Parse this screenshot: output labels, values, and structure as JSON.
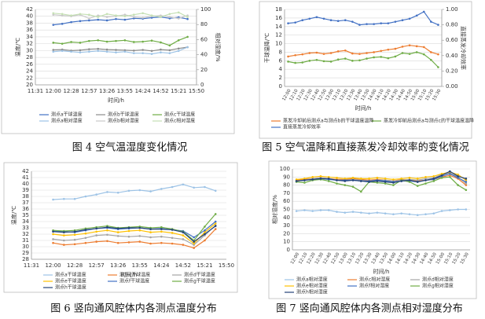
{
  "chart_data": [
    {
      "type": "line",
      "caption": "图 4 空气温湿度变化情况",
      "x_label": "时间/h",
      "y_label": "温度/℃",
      "y2_label": "相对湿度/%",
      "categories": [
        "11:31",
        null,
        "12:00",
        null,
        "12:28",
        null,
        "12:57",
        null,
        "13:26",
        null,
        "13:55",
        null,
        "14:24",
        null,
        "14:52",
        null,
        "15:21",
        null,
        "15:50"
      ],
      "ylim": [
        20,
        42
      ],
      "yticks": [
        20,
        22,
        24,
        26,
        28,
        30,
        32,
        34,
        36,
        38,
        40,
        42
      ],
      "y2lim": [
        0,
        100
      ],
      "y2ticks": [
        0,
        20,
        40,
        60,
        80,
        100
      ],
      "series": [
        {
          "name": "测点a干球温度",
          "color": "#4472c4",
          "values": [
            null,
            null,
            37.5,
            37.8,
            38.3,
            38.6,
            38.8,
            39.0,
            38.8,
            39.2,
            39.0,
            39.4,
            39.3,
            39.6,
            39.8,
            39.4,
            39.7,
            39.2,
            null
          ]
        },
        {
          "name": "测点b干球温度",
          "color": "#8c8c8c",
          "values": [
            null,
            null,
            30.2,
            30.3,
            30.0,
            30.1,
            30.4,
            30.5,
            30.3,
            30.2,
            30.1,
            30.0,
            30.2,
            29.9,
            30.3,
            30.1,
            30.6,
            31.0,
            null
          ]
        },
        {
          "name": "测点c干球温度",
          "color": "#70ad47",
          "values": [
            null,
            null,
            32.3,
            32.0,
            32.5,
            32.3,
            32.8,
            33.0,
            32.6,
            32.8,
            33.0,
            32.5,
            32.6,
            32.9,
            32.4,
            31.5,
            33.0,
            34.0,
            null
          ]
        },
        {
          "name": "测点a相对湿度",
          "color": "#9dc3e6",
          "axis": "y2",
          "values": [
            null,
            null,
            44,
            45,
            44,
            43,
            44,
            45,
            44,
            43,
            44,
            42,
            42,
            41,
            43,
            42,
            45,
            50,
            null
          ]
        },
        {
          "name": "测点b相对湿度",
          "color": "#c9c9c9",
          "axis": "y2",
          "values": [
            null,
            null,
            93,
            92,
            91,
            93,
            88,
            92,
            90,
            91,
            93,
            90,
            89,
            91,
            92,
            90,
            88,
            92,
            null
          ]
        },
        {
          "name": "测点c相对湿度",
          "color": "#c5e0b4",
          "axis": "y2",
          "values": [
            null,
            null,
            95,
            94,
            92,
            94,
            93,
            90,
            94,
            92,
            91,
            93,
            95,
            92,
            90,
            94,
            96,
            90,
            null
          ]
        }
      ]
    },
    {
      "type": "line",
      "caption": "图 5 空气温降和直接蒸发冷却效率的变化情况",
      "x_label": "时间/h",
      "y_label": "干球温降/℃",
      "y2_label": "直接蒸发冷却效率",
      "categories": [
        "12:00",
        "12:10",
        "12:20",
        "12:30",
        "12:40",
        "12:50",
        "13:00",
        "13:10",
        "13:20",
        "13:30",
        "13:40",
        "13:50",
        "14:00",
        "14:10",
        "14:20",
        "14:30",
        "14:40",
        "14:50",
        "15:00",
        "15:10",
        "15:20",
        "15:30"
      ],
      "ylim": [
        0,
        18
      ],
      "yticks": [
        0,
        2,
        4,
        6,
        8,
        10,
        12,
        14,
        16,
        18
      ],
      "y2lim": [
        0,
        1
      ],
      "y2ticks": [
        {
          "value": 0,
          "label": "0.00"
        },
        {
          "value": 0.2,
          "label": "0.20"
        },
        {
          "value": 0.4,
          "label": "0.40"
        },
        {
          "value": 0.6,
          "label": "0.60"
        },
        {
          "value": 0.8,
          "label": "0.80"
        },
        {
          "value": 1,
          "label": "1.00"
        }
      ],
      "series": [
        {
          "name": "蒸发冷却前后测点a与测点b的干球温度温降",
          "color": "#ed7d31",
          "values": [
            7.0,
            7.3,
            7.5,
            7.8,
            7.9,
            7.6,
            7.8,
            8.2,
            8.4,
            7.7,
            7.6,
            7.8,
            8.0,
            8.3,
            8.6,
            8.8,
            9.3,
            9.6,
            9.4,
            9.2,
            8.0,
            7.5
          ]
        },
        {
          "name": "蒸发冷却前后测点a与测点c的干球温度温降",
          "color": "#70ad47",
          "values": [
            5.8,
            5.5,
            5.6,
            6.0,
            6.2,
            5.9,
            5.8,
            6.3,
            6.5,
            6.0,
            6.1,
            6.5,
            6.8,
            6.9,
            6.6,
            7.0,
            7.8,
            7.6,
            8.0,
            7.5,
            6.2,
            4.5
          ]
        },
        {
          "name": "直接蒸发冷却效率",
          "color": "#4472c4",
          "axis": "y2",
          "values": [
            0.82,
            0.83,
            0.86,
            0.88,
            0.9,
            0.88,
            0.86,
            0.85,
            0.86,
            0.84,
            0.8,
            0.81,
            0.81,
            0.82,
            0.82,
            0.84,
            0.86,
            0.88,
            0.92,
            0.97,
            0.84,
            0.8
          ]
        }
      ]
    },
    {
      "type": "line",
      "caption": "图 6 竖向通风腔体内各测点温度分布",
      "x_label": "时间/h",
      "y_label": "温度/℃",
      "categories": [
        "11:31",
        null,
        "12:00",
        null,
        "12:28",
        null,
        "12:57",
        null,
        "13:26",
        null,
        "13:55",
        null,
        "14:24",
        null,
        "14:52",
        null,
        "15:21",
        null,
        "15:50"
      ],
      "ylim": [
        28,
        42
      ],
      "yticks": [
        28,
        29,
        30,
        31,
        32,
        33,
        34,
        35,
        36,
        37,
        38,
        39,
        40,
        41,
        42
      ],
      "series": [
        {
          "name": "测点a干球温度",
          "color": "#9dc3e6",
          "values": [
            null,
            null,
            37.5,
            37.6,
            37.6,
            38.0,
            38.3,
            38.7,
            38.6,
            38.9,
            39.0,
            38.8,
            39.2,
            39.5,
            39.9,
            39.4,
            39.5,
            38.9,
            null
          ]
        },
        {
          "name": "测点c干球温度",
          "color": "#ed7d31",
          "values": [
            null,
            null,
            30.6,
            30.3,
            30.4,
            30.6,
            30.8,
            30.9,
            30.6,
            30.7,
            30.8,
            30.5,
            30.6,
            30.5,
            30.3,
            29.8,
            31.0,
            32.8,
            null
          ]
        },
        {
          "name": "测点d干球温度",
          "color": "#a5a5a5",
          "values": [
            null,
            null,
            31.2,
            31.0,
            31.1,
            31.4,
            31.8,
            31.9,
            31.7,
            31.6,
            31.7,
            31.5,
            31.6,
            31.4,
            31.2,
            30.3,
            31.8,
            33.4,
            null
          ]
        },
        {
          "name": "测点e干球温度",
          "color": "#ffc000",
          "values": [
            null,
            null,
            32.0,
            31.8,
            31.9,
            32.1,
            32.4,
            32.6,
            32.3,
            32.5,
            32.6,
            32.3,
            32.4,
            32.2,
            31.8,
            30.5,
            32.3,
            33.7,
            null
          ]
        },
        {
          "name": "测点f干球温度",
          "color": "#4472c4",
          "values": [
            null,
            null,
            32.5,
            32.4,
            32.3,
            32.6,
            32.9,
            33.0,
            32.8,
            32.9,
            33.0,
            32.8,
            32.9,
            32.7,
            32.5,
            31.5,
            32.6,
            34.0,
            null
          ]
        },
        {
          "name": "测点g干球温度",
          "color": "#70ad47",
          "values": [
            null,
            null,
            32.6,
            32.5,
            32.6,
            32.9,
            33.1,
            33.3,
            33.0,
            33.1,
            33.2,
            33.0,
            33.1,
            32.8,
            32.4,
            31.0,
            33.2,
            35.2,
            null
          ]
        },
        {
          "name": "测点h干球温度",
          "color": "#264478",
          "values": [
            null,
            null,
            32.4,
            32.3,
            32.4,
            32.7,
            32.9,
            33.1,
            32.9,
            33.0,
            33.0,
            32.8,
            32.8,
            32.7,
            32.3,
            30.8,
            32.0,
            33.3,
            null
          ]
        }
      ]
    },
    {
      "type": "line",
      "caption": "图 7 竖向通风腔体内各测点相对湿度分布",
      "x_label": "时间/h",
      "y_label": "相对湿度/%",
      "categories": [
        "12:00",
        "12:10",
        "12:20",
        "12:30",
        "12:40",
        "12:50",
        "13:00",
        "13:10",
        "13:20",
        "13:30",
        "13:40",
        "13:50",
        "14:00",
        "14:10",
        "14:20",
        "14:30",
        "14:40",
        "14:50",
        "15:00",
        "15:10",
        "15:20",
        "15:30"
      ],
      "ylim": [
        0,
        100
      ],
      "yticks": [
        0,
        10,
        20,
        30,
        40,
        50,
        60,
        70,
        80,
        90,
        100
      ],
      "series": [
        {
          "name": "测点a相对湿度",
          "color": "#9dc3e6",
          "values": [
            48,
            49,
            48,
            49,
            49,
            47,
            46,
            47,
            46,
            45,
            46,
            45,
            44,
            45,
            44,
            43,
            44,
            45,
            48,
            49,
            50,
            50
          ]
        },
        {
          "name": "测点c相对湿度",
          "color": "#ed7d31",
          "values": [
            86,
            87,
            88,
            89,
            88,
            87,
            87,
            88,
            87,
            86,
            87,
            86,
            85,
            87,
            86,
            85,
            86,
            87,
            90,
            92,
            88,
            80
          ]
        },
        {
          "name": "测点d相对湿度",
          "color": "#a5a5a5",
          "values": [
            85,
            86,
            88,
            89,
            88,
            86,
            86,
            87,
            86,
            85,
            86,
            86,
            85,
            86,
            87,
            86,
            88,
            89,
            93,
            95,
            90,
            82
          ]
        },
        {
          "name": "测点e相对湿度",
          "color": "#ffc000",
          "values": [
            87,
            88,
            90,
            91,
            90,
            89,
            88,
            89,
            88,
            88,
            89,
            88,
            87,
            88,
            89,
            88,
            90,
            91,
            94,
            96,
            93,
            86
          ]
        },
        {
          "name": "测点f相对湿度",
          "color": "#4472c4",
          "values": [
            85,
            86,
            87,
            88,
            87,
            86,
            86,
            86,
            85,
            85,
            86,
            85,
            84,
            85,
            85,
            84,
            86,
            87,
            91,
            94,
            89,
            84
          ]
        },
        {
          "name": "测点g相对湿度",
          "color": "#70ad47",
          "values": [
            84,
            83,
            86,
            87,
            85,
            82,
            80,
            78,
            72,
            84,
            83,
            82,
            80,
            86,
            84,
            79,
            82,
            85,
            89,
            90,
            80,
            74
          ]
        },
        {
          "name": "测点h相对湿度",
          "color": "#264478",
          "values": [
            85,
            86,
            87,
            88,
            88,
            86,
            85,
            86,
            85,
            84,
            85,
            84,
            83,
            85,
            86,
            84,
            86,
            88,
            92,
            97,
            91,
            88
          ]
        }
      ]
    }
  ]
}
